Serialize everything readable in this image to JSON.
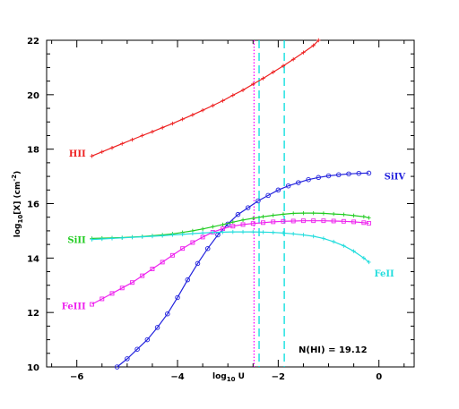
{
  "chart_data": {
    "type": "line",
    "xlabel": "log10 U",
    "xlabel_parts": {
      "base": "log",
      "sub": "10",
      "rest": " U"
    },
    "ylabel": "log10[X] (cm-2)",
    "ylabel_parts": {
      "base": "log",
      "sub": "10",
      "mid": "[X] (cm",
      "sup": "-2",
      "end": ")"
    },
    "xlim": [
      -6.6,
      0.7
    ],
    "ylim": [
      10,
      22
    ],
    "xticks": [
      -6,
      -4,
      -2,
      0
    ],
    "yticks": [
      10,
      12,
      14,
      16,
      18,
      20,
      22
    ],
    "annotation": "N(HI) = 19.12",
    "vlines": [
      {
        "x": -2.48,
        "color": "#ff00ff",
        "style": "dotted"
      },
      {
        "x": -2.38,
        "color": "#00dddd",
        "style": "dashed"
      },
      {
        "x": -1.88,
        "color": "#00dddd",
        "style": "dashed"
      }
    ],
    "series": [
      {
        "name": "HII",
        "color": "#ee2222",
        "marker": "plus",
        "x": [
          -5.7,
          -5.5,
          -5.3,
          -5.1,
          -4.9,
          -4.7,
          -4.5,
          -4.3,
          -4.1,
          -3.9,
          -3.7,
          -3.5,
          -3.3,
          -3.1,
          -2.9,
          -2.7,
          -2.5,
          -2.3,
          -2.1,
          -1.9,
          -1.7,
          -1.5,
          -1.3,
          -1.2
        ],
        "y": [
          17.75,
          17.9,
          18.05,
          18.2,
          18.35,
          18.5,
          18.64,
          18.79,
          18.94,
          19.1,
          19.26,
          19.43,
          19.6,
          19.78,
          19.98,
          20.17,
          20.39,
          20.6,
          20.83,
          21.06,
          21.3,
          21.55,
          21.81,
          22.0
        ]
      },
      {
        "name": "SiIV",
        "color": "#2222dd",
        "marker": "circle",
        "x": [
          -5.2,
          -5.0,
          -4.8,
          -4.6,
          -4.4,
          -4.2,
          -4.0,
          -3.8,
          -3.6,
          -3.4,
          -3.2,
          -3.0,
          -2.8,
          -2.6,
          -2.4,
          -2.2,
          -2.0,
          -1.8,
          -1.6,
          -1.4,
          -1.2,
          -1.0,
          -0.8,
          -0.6,
          -0.4,
          -0.2
        ],
        "y": [
          10.0,
          10.3,
          10.65,
          11.0,
          11.45,
          11.95,
          12.55,
          13.2,
          13.8,
          14.35,
          14.85,
          15.25,
          15.6,
          15.85,
          16.1,
          16.3,
          16.5,
          16.65,
          16.77,
          16.88,
          16.96,
          17.02,
          17.06,
          17.09,
          17.11,
          17.12
        ]
      },
      {
        "name": "SiII",
        "color": "#22cc22",
        "marker": "plus",
        "x": [
          -5.7,
          -5.5,
          -5.3,
          -5.1,
          -4.9,
          -4.7,
          -4.5,
          -4.3,
          -4.1,
          -3.9,
          -3.7,
          -3.5,
          -3.3,
          -3.1,
          -2.9,
          -2.7,
          -2.5,
          -2.3,
          -2.1,
          -1.9,
          -1.7,
          -1.5,
          -1.3,
          -1.1,
          -0.9,
          -0.7,
          -0.5,
          -0.3,
          -0.2
        ],
        "y": [
          14.72,
          14.73,
          14.74,
          14.75,
          14.77,
          14.79,
          14.82,
          14.85,
          14.89,
          14.94,
          15.0,
          15.07,
          15.15,
          15.23,
          15.32,
          15.4,
          15.46,
          15.52,
          15.57,
          15.61,
          15.64,
          15.65,
          15.65,
          15.64,
          15.62,
          15.6,
          15.56,
          15.52,
          15.48
        ]
      },
      {
        "name": "FeIII",
        "color": "#ee22ee",
        "marker": "square",
        "x": [
          -5.7,
          -5.5,
          -5.3,
          -5.1,
          -4.9,
          -4.7,
          -4.5,
          -4.3,
          -4.1,
          -3.9,
          -3.7,
          -3.5,
          -3.3,
          -3.1,
          -2.9,
          -2.7,
          -2.5,
          -2.3,
          -2.1,
          -1.9,
          -1.7,
          -1.5,
          -1.3,
          -1.1,
          -0.9,
          -0.7,
          -0.5,
          -0.3,
          -0.2
        ],
        "y": [
          12.3,
          12.5,
          12.7,
          12.9,
          13.1,
          13.35,
          13.6,
          13.85,
          14.1,
          14.35,
          14.57,
          14.77,
          14.95,
          15.08,
          15.17,
          15.23,
          15.27,
          15.3,
          15.33,
          15.35,
          15.36,
          15.37,
          15.37,
          15.37,
          15.36,
          15.35,
          15.33,
          15.3,
          15.28
        ]
      },
      {
        "name": "FeII",
        "color": "#22dddd",
        "marker": "plus",
        "x": [
          -5.7,
          -5.5,
          -5.3,
          -5.1,
          -4.9,
          -4.7,
          -4.5,
          -4.3,
          -4.1,
          -3.9,
          -3.7,
          -3.5,
          -3.3,
          -3.1,
          -2.9,
          -2.7,
          -2.5,
          -2.3,
          -2.1,
          -1.9,
          -1.7,
          -1.5,
          -1.3,
          -1.1,
          -0.9,
          -0.7,
          -0.5,
          -0.3,
          -0.2
        ],
        "y": [
          14.68,
          14.7,
          14.72,
          14.74,
          14.76,
          14.78,
          14.8,
          14.82,
          14.85,
          14.87,
          14.9,
          14.92,
          14.94,
          14.95,
          14.96,
          14.96,
          14.96,
          14.95,
          14.94,
          14.92,
          14.89,
          14.85,
          14.8,
          14.72,
          14.6,
          14.45,
          14.25,
          14.0,
          13.85
        ]
      }
    ],
    "labels": [
      {
        "text": "HII",
        "color": "#ee2222",
        "x": -5.75,
        "y": 17.85,
        "anchor": "end"
      },
      {
        "text": "SiIV",
        "color": "#2222dd",
        "x": 0.0,
        "y": 17.02,
        "anchor": "start"
      },
      {
        "text": "SiII",
        "color": "#22cc22",
        "x": -5.75,
        "y": 14.68,
        "anchor": "end"
      },
      {
        "text": "FeIII",
        "color": "#ee22ee",
        "x": -5.75,
        "y": 12.25,
        "anchor": "end"
      },
      {
        "text": "FeII",
        "color": "#22dddd",
        "x": -0.2,
        "y": 13.45,
        "anchor": "start"
      }
    ]
  }
}
